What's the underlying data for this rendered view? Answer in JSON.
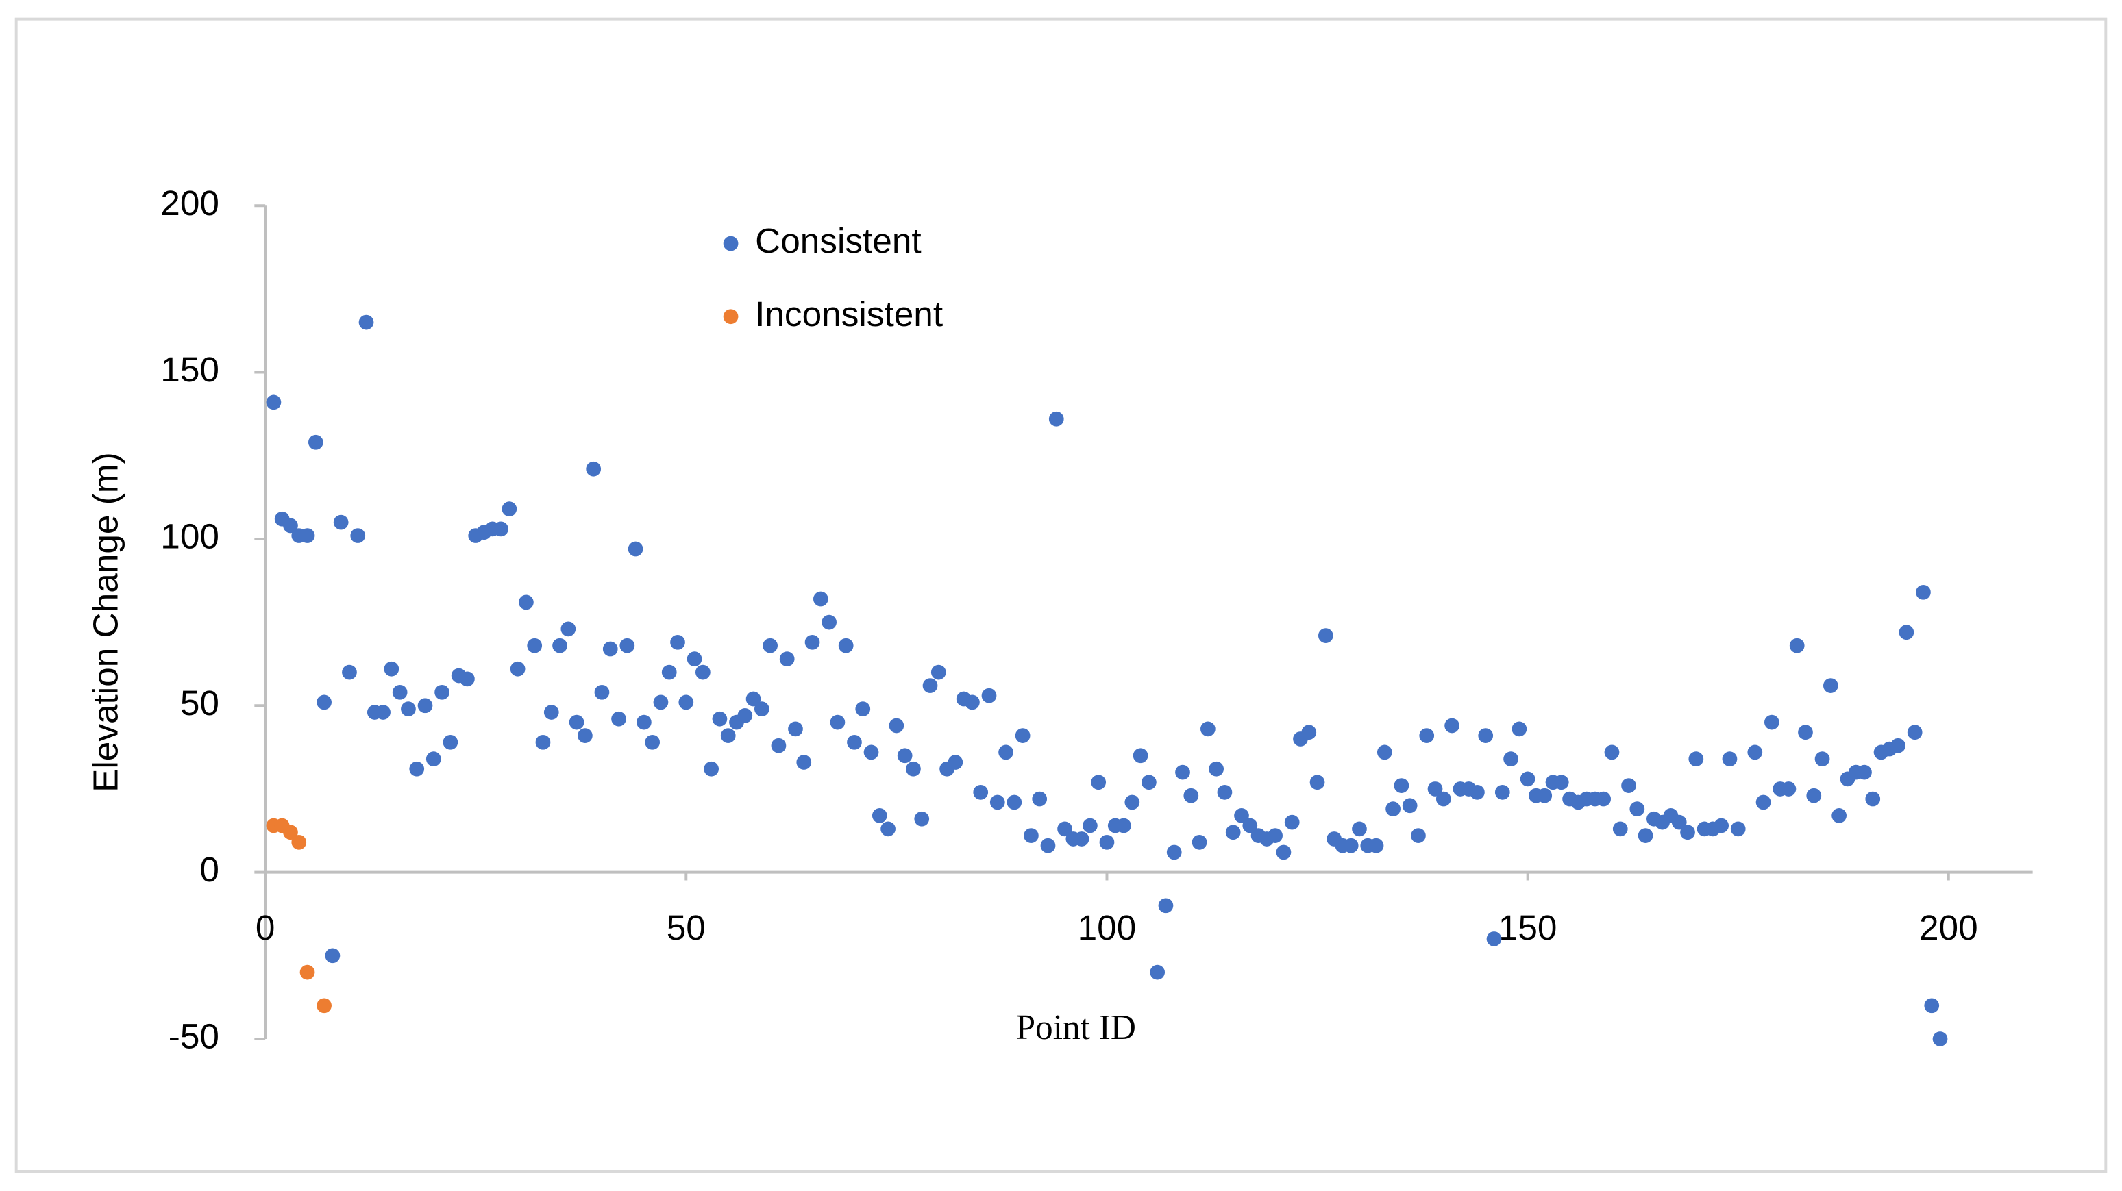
{
  "chart_data": {
    "type": "scatter",
    "x_label": "Point ID",
    "y_label": "Elevation Change (m)",
    "xlim": [
      0,
      210
    ],
    "ylim": [
      -50,
      200
    ],
    "xticks": [
      0,
      50,
      100,
      150,
      200
    ],
    "yticks": [
      -50,
      0,
      50,
      100,
      150,
      200
    ],
    "legend": "top",
    "series": [
      {
        "name": "Consistent",
        "color": "#4472c4",
        "x": [
          1,
          2,
          3,
          4,
          5,
          6,
          7,
          8,
          9,
          10,
          11,
          12,
          13,
          14,
          15,
          16,
          17,
          18,
          19,
          20,
          21,
          22,
          23,
          24,
          25,
          26,
          27,
          28,
          29,
          30,
          31,
          32,
          33,
          34,
          35,
          36,
          37,
          38,
          39,
          40,
          41,
          42,
          43,
          44,
          45,
          46,
          47,
          48,
          49,
          50,
          51,
          52,
          53,
          54,
          55,
          56,
          57,
          58,
          59,
          60,
          61,
          62,
          63,
          64,
          65,
          66,
          67,
          68,
          69,
          70,
          71,
          72,
          73,
          74,
          75,
          76,
          77,
          78,
          79,
          80,
          81,
          82,
          83,
          84,
          85,
          86,
          87,
          88,
          89,
          90,
          91,
          92,
          93,
          94,
          95,
          96,
          97,
          98,
          99,
          100,
          101,
          102,
          103,
          104,
          105,
          106,
          107,
          108,
          109,
          110,
          111,
          112,
          113,
          114,
          115,
          116,
          117,
          118,
          119,
          120,
          121,
          122,
          123,
          124,
          125,
          126,
          127,
          128,
          129,
          130,
          131,
          132,
          133,
          134,
          135,
          136,
          137,
          138,
          139,
          140,
          141,
          142,
          143,
          144,
          145,
          146,
          147,
          148,
          149,
          150,
          151,
          152,
          153,
          154,
          155,
          156,
          157,
          158,
          159,
          160,
          161,
          162,
          163,
          164,
          165,
          166,
          167,
          168,
          169,
          170,
          171,
          172,
          173,
          174,
          175,
          177,
          178,
          179,
          180,
          181,
          182,
          183,
          184,
          185,
          186,
          187,
          188,
          189,
          190,
          191,
          192,
          193,
          194,
          195,
          196,
          197,
          198,
          199
        ],
        "values": [
          141,
          106,
          104,
          101,
          101,
          129,
          51,
          -25,
          105,
          60,
          101,
          165,
          48,
          48,
          61,
          54,
          49,
          31,
          50,
          34,
          54,
          39,
          59,
          58,
          101,
          102,
          103,
          103,
          109,
          61,
          81,
          68,
          39,
          48,
          68,
          73,
          45,
          41,
          121,
          54,
          67,
          46,
          68,
          97,
          45,
          39,
          51,
          60,
          69,
          51,
          64,
          60,
          31,
          46,
          41,
          45,
          47,
          52,
          49,
          68,
          38,
          64,
          43,
          33,
          69,
          82,
          75,
          45,
          68,
          39,
          49,
          36,
          17,
          13,
          44,
          35,
          31,
          16,
          56,
          60,
          31,
          33,
          52,
          51,
          24,
          53,
          21,
          36,
          21,
          41,
          11,
          22,
          8,
          136,
          13,
          10,
          10,
          14,
          27,
          9,
          14,
          14,
          21,
          35,
          27,
          -30,
          -10,
          6,
          30,
          23,
          9,
          43,
          31,
          24,
          12,
          17,
          14,
          11,
          10,
          11,
          6,
          15,
          40,
          42,
          27,
          71,
          10,
          8,
          8,
          13,
          8,
          8,
          36,
          19,
          26,
          20,
          11,
          41,
          25,
          22,
          44,
          25,
          25,
          24,
          41,
          -20,
          24,
          34,
          43,
          28,
          23,
          23,
          27,
          27,
          22,
          21,
          22,
          22,
          22,
          36,
          13,
          26,
          19,
          11,
          16,
          15,
          17,
          15,
          12,
          34,
          13,
          13,
          14,
          34,
          13,
          36,
          21,
          45,
          25,
          25,
          68,
          42,
          23,
          34,
          56,
          17,
          28,
          30,
          30,
          22,
          36,
          37,
          38,
          72,
          42,
          84,
          -40,
          -50
        ]
      },
      {
        "name": "Inconsistent",
        "color": "#ed7d31",
        "x": [
          1,
          2,
          3,
          4,
          5,
          7
        ],
        "values": [
          14,
          14,
          12,
          9,
          -30,
          -40
        ]
      }
    ]
  }
}
